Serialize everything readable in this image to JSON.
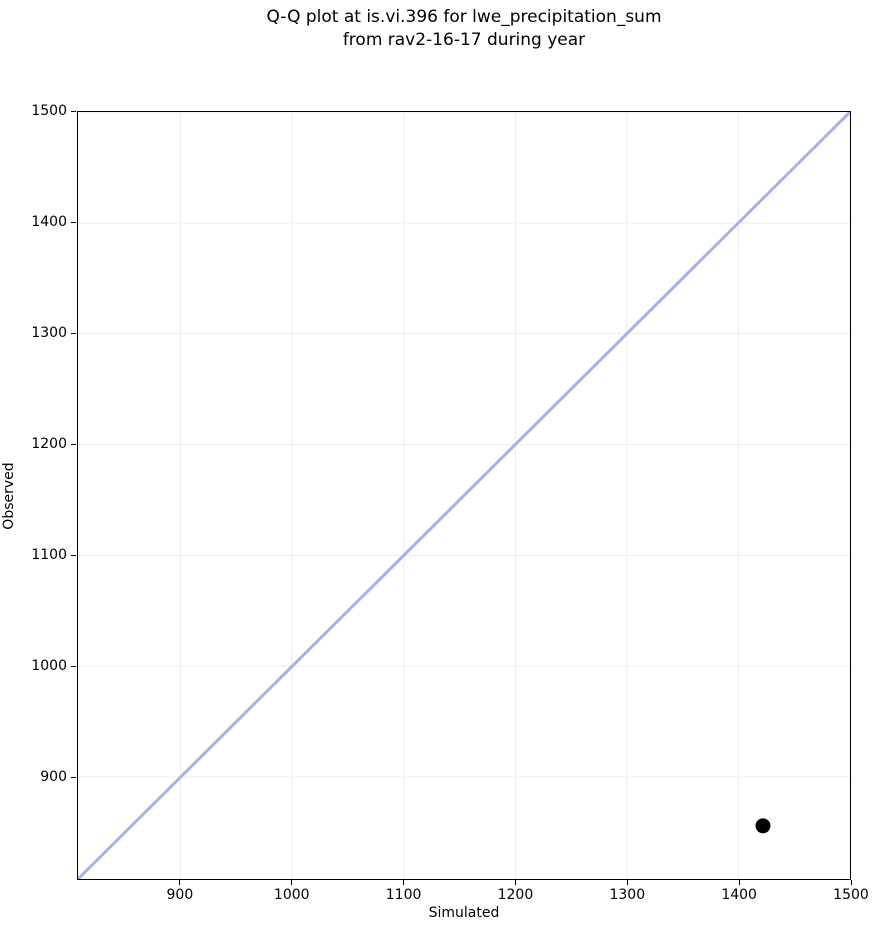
{
  "title": {
    "line1": "Q-Q plot at is.vi.396 for lwe_precipitation_sum",
    "line2": "from rav2-16-17 during year"
  },
  "chart_data": {
    "type": "scatter",
    "title": "Q-Q plot at is.vi.396 for lwe_precipitation_sum from rav2-16-17 during year",
    "xlabel": "Simulated",
    "ylabel": "Observed",
    "xlim": [
      808,
      1500
    ],
    "ylim": [
      808,
      1500
    ],
    "xticks": [
      900,
      1000,
      1100,
      1200,
      1300,
      1400,
      1500
    ],
    "yticks": [
      900,
      1000,
      1100,
      1200,
      1300,
      1400,
      1500
    ],
    "grid": true,
    "legend": "none",
    "identity_line": {
      "from": [
        808,
        808
      ],
      "to": [
        1500,
        1500
      ],
      "color": "#a9aef0",
      "width": 3
    },
    "points": [
      {
        "x": 1422,
        "y": 856
      }
    ],
    "point_style": {
      "color": "#000000",
      "radius": 7.5
    },
    "colors": {
      "background": "#ffffff",
      "spine": "#000000",
      "grid": "#ededed",
      "text": "#000000"
    }
  }
}
